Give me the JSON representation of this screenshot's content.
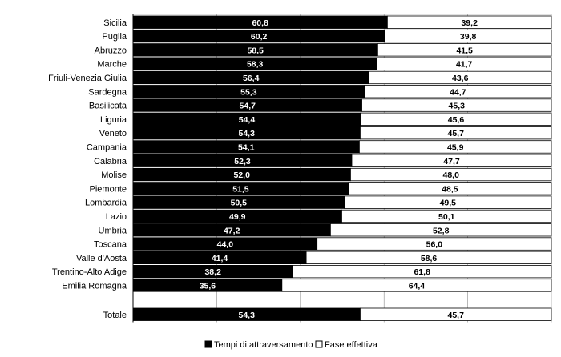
{
  "chart_data": {
    "type": "bar",
    "orientation": "horizontal",
    "stacked": true,
    "percent_stacked": true,
    "categories": [
      "Sicilia",
      "Puglia",
      "Abruzzo",
      "Marche",
      "Friuli-Venezia Giulia",
      "Sardegna",
      "Basilicata",
      "Liguria",
      "Veneto",
      "Campania",
      "Calabria",
      "Molise",
      "Piemonte",
      "Lombardia",
      "Lazio",
      "Umbria",
      "Toscana",
      "Valle d'Aosta",
      "Trentino-Alto Adige",
      "Emilia Romagna",
      "Totale"
    ],
    "series": [
      {
        "name": "Tempi di attraversamento",
        "color": "#000000",
        "values": [
          60.8,
          60.2,
          58.5,
          58.3,
          56.4,
          55.3,
          54.7,
          54.4,
          54.3,
          54.1,
          52.3,
          52.0,
          51.5,
          50.5,
          49.9,
          47.2,
          44.0,
          41.4,
          38.2,
          35.6,
          54.3
        ],
        "labels": [
          "60,8",
          "60,2",
          "58,5",
          "58,3",
          "56,4",
          "55,3",
          "54,7",
          "54,4",
          "54,3",
          "54,1",
          "52,3",
          "52,0",
          "51,5",
          "50,5",
          "49,9",
          "47,2",
          "44,0",
          "41,4",
          "38,2",
          "35,6",
          "54,3"
        ]
      },
      {
        "name": "Fase effettiva",
        "color": "#ffffff",
        "values": [
          39.2,
          39.8,
          41.5,
          41.7,
          43.6,
          44.7,
          45.3,
          45.6,
          45.7,
          45.9,
          47.7,
          48.0,
          48.5,
          49.5,
          50.1,
          52.8,
          56.0,
          58.6,
          61.8,
          64.4,
          45.7
        ],
        "labels": [
          "39,2",
          "39,8",
          "41,5",
          "41,7",
          "43,6",
          "44,7",
          "45,3",
          "45,6",
          "45,7",
          "45,9",
          "47,7",
          "48,0",
          "48,5",
          "49,5",
          "50,1",
          "52,8",
          "56,0",
          "58,6",
          "61,8",
          "64,4",
          "45,7"
        ]
      }
    ],
    "xlim": [
      0,
      100
    ],
    "grid": "vertical",
    "legend": "bottom-center"
  }
}
